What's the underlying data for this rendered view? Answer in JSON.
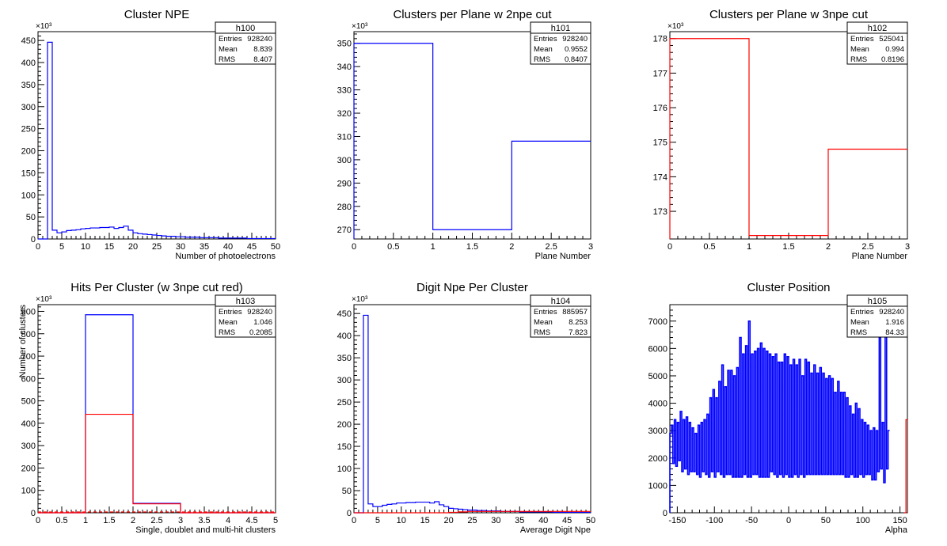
{
  "colors": {
    "blue": "#0000ff",
    "red": "#ff0000",
    "axis": "#000000"
  },
  "chart_data": [
    {
      "type": "bar",
      "title": "Cluster NPE",
      "xlabel": "Number of photoelectrons",
      "ylabel": "",
      "exponent": "×10³",
      "xlim": [
        0,
        50
      ],
      "ylim": [
        0,
        470
      ],
      "xticks": [
        0,
        5,
        10,
        15,
        20,
        25,
        30,
        35,
        40,
        45,
        50
      ],
      "yticks": [
        0,
        50,
        100,
        150,
        200,
        250,
        300,
        350,
        400,
        450
      ],
      "stats": {
        "name": "h100",
        "rows": [
          [
            "Entries",
            "928240"
          ],
          [
            "Mean",
            "8.839"
          ],
          [
            "RMS",
            "8.407"
          ]
        ]
      },
      "series": [
        {
          "color": "#0000ff",
          "x_start": 0,
          "bin_width": 1,
          "values": [
            0,
            0,
            446,
            20,
            14,
            16,
            19,
            20,
            21,
            23,
            24,
            25,
            25,
            26,
            26,
            27,
            24,
            26,
            29,
            20,
            14,
            12,
            11,
            10,
            9,
            8,
            7,
            6,
            6,
            5,
            5,
            4,
            4,
            4,
            3,
            3,
            3,
            3,
            2,
            2,
            2,
            2,
            2,
            2,
            1,
            1,
            1,
            1,
            1,
            1
          ]
        }
      ]
    },
    {
      "type": "bar",
      "title": "Clusters per Plane w 2npe cut",
      "xlabel": "Plane Number",
      "ylabel": "",
      "exponent": "×10³",
      "xlim": [
        0,
        3
      ],
      "ylim": [
        266,
        355
      ],
      "xticks": [
        0,
        0.5,
        1,
        1.5,
        2,
        2.5,
        3
      ],
      "yticks": [
        270,
        280,
        290,
        300,
        310,
        320,
        330,
        340,
        350
      ],
      "stats": {
        "name": "h101",
        "rows": [
          [
            "Entries",
            "928240"
          ],
          [
            "Mean",
            "0.9552"
          ],
          [
            "RMS",
            "0.8407"
          ]
        ]
      },
      "series": [
        {
          "color": "#0000ff",
          "x_start": 0,
          "bin_width": 1,
          "values": [
            350,
            270,
            308
          ]
        }
      ]
    },
    {
      "type": "bar",
      "title": "Clusters per Plane w 3npe cut",
      "xlabel": "Plane Number",
      "ylabel": "",
      "exponent": "×10³",
      "xlim": [
        0,
        3
      ],
      "ylim": [
        172.2,
        178.2
      ],
      "xticks": [
        0,
        0.5,
        1,
        1.5,
        2,
        2.5,
        3
      ],
      "yticks": [
        173,
        174,
        175,
        176,
        177,
        178
      ],
      "stats": {
        "name": "h102",
        "rows": [
          [
            "Entries",
            "525041"
          ],
          [
            "Mean",
            "0.994"
          ],
          [
            "RMS",
            "0.8196"
          ]
        ]
      },
      "series": [
        {
          "color": "#ff0000",
          "x_start": 0,
          "bin_width": 1,
          "values": [
            178,
            172.3,
            174.8
          ]
        }
      ]
    },
    {
      "type": "bar",
      "title": "Hits Per Cluster (w 3npe cut red)",
      "xlabel": "Single, doublet and multi-hit clusters",
      "ylabel": "Number of clusters",
      "exponent": "×10³",
      "xlim": [
        0,
        5
      ],
      "ylim": [
        0,
        930
      ],
      "xticks": [
        0,
        0.5,
        1,
        1.5,
        2,
        2.5,
        3,
        3.5,
        4,
        4.5,
        5
      ],
      "yticks": [
        0,
        100,
        200,
        300,
        400,
        500,
        600,
        700,
        800,
        900
      ],
      "stats": {
        "name": "h103",
        "rows": [
          [
            "Entries",
            "928240"
          ],
          [
            "Mean",
            "1.046"
          ],
          [
            "RMS",
            "0.2085"
          ]
        ]
      },
      "series": [
        {
          "color": "#0000ff",
          "x_start": 0,
          "bin_width": 1,
          "values": [
            0,
            885,
            42,
            0,
            0
          ]
        },
        {
          "color": "#ff0000",
          "x_start": 0,
          "bin_width": 1,
          "values": [
            0,
            440,
            40,
            0,
            0
          ],
          "dashed_zero": true
        }
      ]
    },
    {
      "type": "bar",
      "title": "Digit Npe Per Cluster",
      "xlabel": "Average Digit Npe",
      "ylabel": "",
      "exponent": "×10³",
      "xlim": [
        0,
        50
      ],
      "ylim": [
        0,
        470
      ],
      "xticks": [
        0,
        5,
        10,
        15,
        20,
        25,
        30,
        35,
        40,
        45,
        50
      ],
      "yticks": [
        0,
        50,
        100,
        150,
        200,
        250,
        300,
        350,
        400,
        450
      ],
      "stats": {
        "name": "h104",
        "rows": [
          [
            "Entries",
            "885957"
          ],
          [
            "Mean",
            "8.253"
          ],
          [
            "RMS",
            "7.823"
          ]
        ]
      },
      "series": [
        {
          "color": "#0000ff",
          "x_start": 0,
          "bin_width": 1,
          "values": [
            0,
            0,
            446,
            20,
            14,
            14,
            17,
            19,
            20,
            22,
            22,
            23,
            23,
            24,
            24,
            24,
            22,
            25,
            18,
            14,
            10,
            9,
            8,
            7,
            6,
            6,
            5,
            5,
            4,
            4,
            4,
            3,
            3,
            3,
            3,
            2,
            2,
            2,
            2,
            2,
            2,
            2,
            1,
            1,
            1,
            1,
            1,
            1,
            1,
            1
          ]
        },
        {
          "color": "#ff0000",
          "x_start": 0,
          "bin_width": 1,
          "values": [
            0,
            0,
            0,
            0,
            0,
            0,
            0,
            0,
            0,
            0,
            0,
            0,
            0,
            0,
            0,
            0,
            0,
            0,
            0,
            0,
            1,
            1,
            2,
            2,
            3,
            3,
            3,
            3,
            3,
            3,
            3,
            3,
            3,
            3,
            3,
            3,
            3,
            3,
            3,
            3,
            3,
            3,
            3,
            3,
            3,
            3,
            3,
            3,
            3,
            3
          ]
        }
      ]
    },
    {
      "type": "bar",
      "title": "Cluster Position",
      "xlabel": "Alpha",
      "ylabel": "",
      "exponent": "",
      "xlim": [
        -160,
        160
      ],
      "ylim": [
        0,
        7600
      ],
      "xticks": [
        -150,
        -100,
        -50,
        0,
        50,
        100,
        150
      ],
      "yticks": [
        0,
        1000,
        2000,
        3000,
        4000,
        5000,
        6000,
        7000
      ],
      "stats": {
        "name": "h105",
        "rows": [
          [
            "Entries",
            "928240"
          ],
          [
            "Mean",
            "1.916"
          ],
          [
            "RMS",
            "84.33"
          ]
        ]
      },
      "series": [
        {
          "color": "#0000ff",
          "x_start": -160,
          "bin_width": 2,
          "values": [
            2900,
            3200,
            1800,
            3400,
            1700,
            3300,
            1900,
            3700,
            1500,
            3400,
            1600,
            3500,
            1400,
            3300,
            1500,
            3100,
            1500,
            2900,
            1400,
            3200,
            1300,
            3300,
            1500,
            3400,
            1400,
            3600,
            1300,
            4200,
            1500,
            4500,
            1300,
            4200,
            1500,
            4800,
            1400,
            5400,
            1300,
            4600,
            1400,
            5200,
            1400,
            5200,
            1300,
            5000,
            1300,
            5300,
            1300,
            6400,
            1300,
            5800,
            1400,
            6100,
            1300,
            7000,
            1300,
            5800,
            1400,
            5900,
            1400,
            6000,
            1300,
            6200,
            1300,
            6000,
            1300,
            5900,
            1300,
            5800,
            1500,
            5700,
            1400,
            5800,
            1300,
            5500,
            1400,
            5500,
            1300,
            5800,
            1400,
            5700,
            1300,
            5400,
            1300,
            5600,
            1400,
            5400,
            1300,
            5600,
            1400,
            5000,
            1300,
            5600,
            1400,
            5500,
            1400,
            5100,
            1400,
            5400,
            1400,
            5100,
            1400,
            5300,
            1400,
            5100,
            1400,
            4900,
            1400,
            5000,
            1400,
            4900,
            1400,
            4400,
            1400,
            4800,
            1400,
            4400,
            1400,
            4400,
            1300,
            4200,
            1300,
            3900,
            1400,
            3600,
            1300,
            4000,
            1300,
            3800,
            1400,
            3400,
            1300,
            3300,
            1400,
            3200,
            1400,
            3000,
            1200,
            3100,
            1200,
            3000,
            1500,
            6400,
            1600,
            3300,
            1100,
            6900,
            1600,
            3000
          ]
        },
        {
          "color": "#ff0000",
          "x_start": 156,
          "bin_width": 2,
          "values": [
            0,
            3400
          ]
        }
      ]
    }
  ]
}
